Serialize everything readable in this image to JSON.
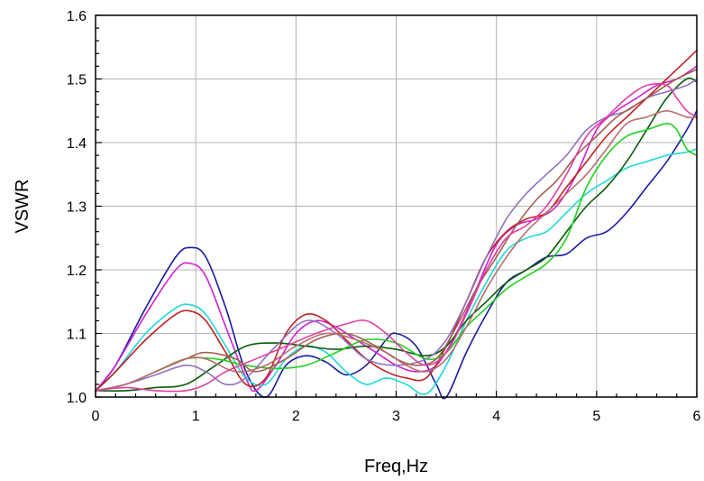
{
  "chart_data": {
    "type": "line",
    "title": "",
    "xlabel": "Freq,Hz",
    "ylabel": "VSWR",
    "xlim": [
      0,
      6
    ],
    "ylim": [
      1.0,
      1.6
    ],
    "xticks": [
      0,
      1,
      2,
      3,
      4,
      5,
      6
    ],
    "xtick_labels": [
      "0",
      "1",
      "2",
      "3",
      "4",
      "5",
      "6"
    ],
    "yticks": [
      1.0,
      1.1,
      1.2,
      1.3,
      1.4,
      1.5,
      1.6
    ],
    "ytick_labels": [
      "1.0",
      "1.1",
      "1.2",
      "1.3",
      "1.4",
      "1.5",
      "1.6"
    ],
    "grid": true,
    "legend": "none",
    "series": [
      {
        "color": "#1a1aa0",
        "x": [
          0,
          0.2,
          0.5,
          0.8,
          0.95,
          1.1,
          1.3,
          1.5,
          1.7,
          1.9,
          2.1,
          2.3,
          2.5,
          2.7,
          2.9,
          3.0,
          3.2,
          3.4,
          3.5,
          3.7,
          3.9,
          4.1,
          4.3,
          4.5,
          4.7,
          4.9,
          5.1,
          5.3,
          5.5,
          5.7,
          5.9,
          6.0
        ],
        "y": [
          1.01,
          1.05,
          1.14,
          1.22,
          1.235,
          1.22,
          1.14,
          1.04,
          1.0,
          1.05,
          1.065,
          1.055,
          1.035,
          1.05,
          1.09,
          1.1,
          1.08,
          1.02,
          1.0,
          1.07,
          1.13,
          1.18,
          1.2,
          1.22,
          1.225,
          1.25,
          1.26,
          1.29,
          1.33,
          1.37,
          1.42,
          1.45
        ]
      },
      {
        "color": "#d020d0",
        "x": [
          0,
          0.2,
          0.5,
          0.8,
          0.95,
          1.1,
          1.3,
          1.5,
          1.6,
          1.8,
          2.0,
          2.2,
          2.4,
          2.6,
          2.8,
          3.0,
          3.2,
          3.4,
          3.6,
          3.8,
          4.0,
          4.2,
          4.4,
          4.6,
          4.8,
          5.0,
          5.2,
          5.4,
          5.6,
          5.8,
          6.0
        ],
        "y": [
          1.01,
          1.05,
          1.13,
          1.2,
          1.21,
          1.19,
          1.11,
          1.03,
          1.01,
          1.05,
          1.1,
          1.12,
          1.11,
          1.09,
          1.07,
          1.05,
          1.04,
          1.05,
          1.1,
          1.17,
          1.24,
          1.27,
          1.28,
          1.3,
          1.35,
          1.42,
          1.45,
          1.47,
          1.49,
          1.5,
          1.52
        ]
      },
      {
        "color": "#20d8d8",
        "x": [
          0,
          0.2,
          0.5,
          0.8,
          0.95,
          1.1,
          1.3,
          1.5,
          1.7,
          1.9,
          2.1,
          2.3,
          2.5,
          2.7,
          2.9,
          3.1,
          3.3,
          3.5,
          3.7,
          3.9,
          4.1,
          4.3,
          4.5,
          4.7,
          4.9,
          5.1,
          5.3,
          5.5,
          5.7,
          5.9,
          6.0
        ],
        "y": [
          1.01,
          1.04,
          1.1,
          1.14,
          1.145,
          1.13,
          1.08,
          1.03,
          1.02,
          1.06,
          1.08,
          1.07,
          1.04,
          1.02,
          1.03,
          1.02,
          1.005,
          1.05,
          1.12,
          1.18,
          1.23,
          1.25,
          1.26,
          1.29,
          1.32,
          1.34,
          1.36,
          1.37,
          1.38,
          1.385,
          1.39
        ]
      },
      {
        "color": "#c02020",
        "x": [
          0,
          0.2,
          0.5,
          0.8,
          0.95,
          1.1,
          1.3,
          1.5,
          1.7,
          1.9,
          2.1,
          2.3,
          2.5,
          2.7,
          2.9,
          3.1,
          3.3,
          3.5,
          3.7,
          3.9,
          4.1,
          4.3,
          4.5,
          4.7,
          4.9,
          5.1,
          5.3,
          5.5,
          5.7,
          5.9,
          6.0
        ],
        "y": [
          1.01,
          1.04,
          1.09,
          1.13,
          1.135,
          1.12,
          1.07,
          1.02,
          1.03,
          1.1,
          1.13,
          1.12,
          1.09,
          1.06,
          1.04,
          1.03,
          1.03,
          1.08,
          1.15,
          1.22,
          1.26,
          1.28,
          1.29,
          1.33,
          1.37,
          1.41,
          1.44,
          1.47,
          1.5,
          1.53,
          1.545
        ]
      },
      {
        "color": "#0a5a0a",
        "x": [
          0,
          0.3,
          0.6,
          0.9,
          1.2,
          1.5,
          1.8,
          2.1,
          2.4,
          2.7,
          3.0,
          3.3,
          3.5,
          3.7,
          3.9,
          4.1,
          4.3,
          4.5,
          4.7,
          4.9,
          5.1,
          5.3,
          5.5,
          5.7,
          5.9,
          6.0
        ],
        "y": [
          1.01,
          1.01,
          1.015,
          1.02,
          1.05,
          1.08,
          1.085,
          1.08,
          1.075,
          1.08,
          1.075,
          1.065,
          1.08,
          1.12,
          1.15,
          1.18,
          1.2,
          1.22,
          1.26,
          1.3,
          1.33,
          1.37,
          1.42,
          1.47,
          1.5,
          1.495
        ]
      },
      {
        "color": "#20d020",
        "x": [
          0,
          0.3,
          0.6,
          0.9,
          1.2,
          1.5,
          1.8,
          2.1,
          2.4,
          2.7,
          3.0,
          3.3,
          3.5,
          3.7,
          3.9,
          4.1,
          4.3,
          4.5,
          4.7,
          4.9,
          5.1,
          5.3,
          5.5,
          5.7,
          5.8,
          5.9,
          6.0
        ],
        "y": [
          1.01,
          1.02,
          1.04,
          1.06,
          1.06,
          1.05,
          1.045,
          1.05,
          1.07,
          1.09,
          1.085,
          1.06,
          1.07,
          1.11,
          1.14,
          1.17,
          1.19,
          1.21,
          1.25,
          1.33,
          1.38,
          1.41,
          1.42,
          1.43,
          1.42,
          1.39,
          1.38
        ]
      },
      {
        "color": "#9070c0",
        "x": [
          0,
          0.3,
          0.6,
          0.9,
          1.1,
          1.3,
          1.5,
          1.8,
          2.1,
          2.4,
          2.7,
          3.0,
          3.3,
          3.5,
          3.7,
          3.9,
          4.1,
          4.3,
          4.5,
          4.7,
          4.9,
          5.1,
          5.3,
          5.5,
          5.7,
          5.9,
          6.0
        ],
        "y": [
          1.01,
          1.02,
          1.035,
          1.05,
          1.04,
          1.02,
          1.03,
          1.08,
          1.12,
          1.1,
          1.06,
          1.05,
          1.06,
          1.09,
          1.15,
          1.22,
          1.28,
          1.32,
          1.35,
          1.38,
          1.42,
          1.44,
          1.45,
          1.47,
          1.48,
          1.49,
          1.5
        ]
      },
      {
        "color": "#a06050",
        "x": [
          0,
          0.3,
          0.6,
          0.9,
          1.1,
          1.4,
          1.6,
          1.9,
          2.2,
          2.5,
          2.8,
          3.0,
          3.2,
          3.4,
          3.6,
          3.8,
          4.0,
          4.2,
          4.4,
          4.6,
          4.8,
          5.0,
          5.2,
          5.4,
          5.6,
          5.8,
          6.0
        ],
        "y": [
          1.01,
          1.02,
          1.04,
          1.06,
          1.07,
          1.06,
          1.04,
          1.06,
          1.09,
          1.1,
          1.08,
          1.06,
          1.05,
          1.06,
          1.11,
          1.17,
          1.22,
          1.27,
          1.31,
          1.34,
          1.38,
          1.41,
          1.44,
          1.46,
          1.48,
          1.5,
          1.515
        ]
      },
      {
        "color": "#b86e6e",
        "x": [
          0,
          0.3,
          0.6,
          0.9,
          1.1,
          1.4,
          1.7,
          2.0,
          2.3,
          2.6,
          2.9,
          3.1,
          3.3,
          3.5,
          3.7,
          3.9,
          4.1,
          4.3,
          4.5,
          4.7,
          4.9,
          5.1,
          5.3,
          5.5,
          5.7,
          5.9,
          6.0
        ],
        "y": [
          1.01,
          1.02,
          1.04,
          1.06,
          1.06,
          1.04,
          1.05,
          1.08,
          1.1,
          1.09,
          1.07,
          1.05,
          1.04,
          1.06,
          1.11,
          1.17,
          1.22,
          1.26,
          1.29,
          1.32,
          1.35,
          1.39,
          1.43,
          1.44,
          1.45,
          1.44,
          1.44
        ]
      },
      {
        "color": "#e040a0",
        "x": [
          0,
          0.3,
          0.6,
          0.9,
          1.1,
          1.3,
          1.6,
          1.9,
          2.2,
          2.5,
          2.7,
          2.9,
          3.1,
          3.3,
          3.5,
          3.7,
          3.9,
          4.1,
          4.3,
          4.5,
          4.7,
          4.9,
          5.1,
          5.3,
          5.5,
          5.7,
          5.8,
          5.9,
          6.0
        ],
        "y": [
          1.01,
          1.015,
          1.01,
          1.01,
          1.02,
          1.04,
          1.06,
          1.08,
          1.1,
          1.115,
          1.12,
          1.1,
          1.07,
          1.05,
          1.07,
          1.13,
          1.2,
          1.25,
          1.27,
          1.3,
          1.35,
          1.41,
          1.44,
          1.47,
          1.49,
          1.49,
          1.47,
          1.45,
          1.44
        ]
      }
    ]
  }
}
